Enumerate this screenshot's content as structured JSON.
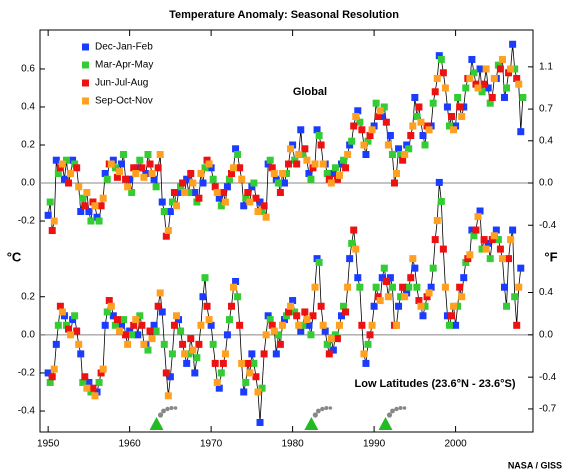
{
  "title": "Temperature Anomaly:  Seasonal Resolution",
  "credit": "NASA / GISS",
  "chart_data": [
    {
      "type": "line",
      "label": "Global",
      "ylabel": "°C",
      "y2label": "°F",
      "xlim": [
        1949,
        2009.5
      ],
      "xticks": [
        1950,
        1960,
        1970,
        1980,
        1990,
        2000
      ],
      "ylim": [
        -1.31,
        0.805
      ],
      "yticks": [
        -0.2,
        {
          "value": 0,
          "label": "0.0"
        },
        0.2,
        0.4,
        0.6
      ],
      "y2lim": [
        -2.358,
        1.449
      ],
      "y2ticks": [
        -0.4,
        {
          "value": 0,
          "label": "0.0"
        },
        0.4,
        0.7,
        1.1
      ],
      "zero_line": true,
      "legend": "upper left",
      "line_color": "#000000",
      "x": [
        1950,
        1951,
        1952,
        1953,
        1954,
        1955,
        1956,
        1957,
        1958,
        1959,
        1960,
        1961,
        1962,
        1963,
        1964,
        1965,
        1966,
        1967,
        1968,
        1969,
        1970,
        1971,
        1972,
        1973,
        1974,
        1975,
        1976,
        1977,
        1978,
        1979,
        1980,
        1981,
        1982,
        1983,
        1984,
        1985,
        1986,
        1987,
        1988,
        1989,
        1990,
        1991,
        1992,
        1993,
        1994,
        1995,
        1996,
        1997,
        1998,
        1999,
        2000,
        2001,
        2002,
        2003,
        2004,
        2005,
        2006,
        2007,
        2008
      ],
      "series": [
        {
          "name": "Dec-Jan-Feb",
          "color": "#1a3cff",
          "values": [
            -0.17,
            0.12,
            0.02,
            0.12,
            -0.15,
            -0.15,
            -0.18,
            0.05,
            0.12,
            0.1,
            0.02,
            0.08,
            0.05,
            0.02,
            -0.1,
            -0.15,
            -0.05,
            0.02,
            -0.05,
            0.0,
            0.08,
            -0.08,
            -0.02,
            0.18,
            -0.12,
            -0.02,
            -0.1,
            0.1,
            0.02,
            0.0,
            0.2,
            0.28,
            0.05,
            0.28,
            0.1,
            0.05,
            0.1,
            0.2,
            0.38,
            0.15,
            0.3,
            0.35,
            0.25,
            0.18,
            0.2,
            0.45,
            0.25,
            0.3,
            0.67,
            0.4,
            0.3,
            0.4,
            0.65,
            0.6,
            0.5,
            0.55,
            0.45,
            0.73,
            0.27
          ]
        },
        {
          "name": "Mar-Apr-May",
          "color": "#33cc33",
          "values": [
            -0.1,
            0.05,
            0.12,
            0.1,
            -0.08,
            -0.2,
            -0.2,
            0.02,
            0.08,
            0.15,
            -0.05,
            0.12,
            0.15,
            -0.02,
            -0.15,
            -0.1,
            -0.02,
            -0.05,
            -0.1,
            0.08,
            0.02,
            -0.12,
            0.02,
            0.15,
            -0.08,
            0.0,
            -0.15,
            0.12,
            0.0,
            0.05,
            0.12,
            0.15,
            0.02,
            0.25,
            0.05,
            0.08,
            0.12,
            0.22,
            0.32,
            0.22,
            0.42,
            0.4,
            0.15,
            0.15,
            0.18,
            0.35,
            0.2,
            0.42,
            0.65,
            0.3,
            0.45,
            0.5,
            0.58,
            0.48,
            0.42,
            0.62,
            0.5,
            0.6,
            0.45
          ]
        },
        {
          "name": "Jun-Jul-Aug",
          "color": "#ee1111",
          "values": [
            -0.25,
            0.08,
            0.0,
            0.08,
            -0.12,
            -0.1,
            -0.12,
            0.1,
            0.03,
            0.02,
            0.08,
            0.08,
            0.1,
            0.08,
            -0.28,
            -0.05,
            0.0,
            0.05,
            -0.08,
            0.12,
            -0.02,
            -0.05,
            0.05,
            0.08,
            -0.05,
            -0.08,
            -0.12,
            0.08,
            -0.05,
            0.1,
            0.1,
            0.18,
            0.08,
            0.2,
            0.02,
            0.02,
            0.08,
            0.3,
            0.28,
            0.25,
            0.35,
            0.32,
            0.0,
            0.12,
            0.25,
            0.4,
            0.3,
            0.48,
            0.58,
            0.35,
            0.4,
            0.55,
            0.52,
            0.52,
            0.45,
            0.6,
            0.58,
            0.55,
            null
          ]
        },
        {
          "name": "Sep-Oct-Nov",
          "color": "#ffa020",
          "values": [
            -0.2,
            0.1,
            0.05,
            -0.02,
            -0.05,
            -0.12,
            -0.08,
            0.1,
            0.06,
            -0.02,
            0.05,
            0.03,
            0.05,
            0.15,
            -0.25,
            -0.12,
            -0.05,
            0.0,
            0.05,
            0.1,
            -0.05,
            -0.1,
            0.08,
            0.02,
            -0.1,
            -0.15,
            -0.18,
            0.05,
            0.05,
            0.18,
            0.15,
            0.12,
            0.1,
            0.1,
            0.0,
            0.04,
            0.15,
            0.35,
            0.2,
            0.28,
            0.38,
            0.2,
            0.05,
            0.15,
            0.3,
            0.32,
            0.28,
            0.55,
            0.5,
            0.28,
            0.35,
            0.55,
            0.5,
            0.6,
            0.55,
            0.65,
            0.6,
            0.52,
            null
          ]
        }
      ]
    },
    {
      "type": "line",
      "label": "Low Latitudes (23.6°N - 23.6°S)",
      "xlim": [
        1949,
        2009.5
      ],
      "ylim": [
        -0.51,
        1.6
      ],
      "yticks": [
        -0.4,
        -0.2,
        {
          "value": 0,
          "label": "0.0"
        },
        0.2
      ],
      "y2lim": [
        -0.918,
        2.88
      ],
      "y2ticks": [
        -0.7,
        -0.4,
        {
          "value": 0,
          "label": "0.0"
        },
        0.4
      ],
      "zero_line": true,
      "line_color": "#000000",
      "markers_x": [
        1963.3,
        1982.3,
        1991.4
      ],
      "marker_color": "#22bb22",
      "x": [
        1950,
        1951,
        1952,
        1953,
        1954,
        1955,
        1956,
        1957,
        1958,
        1959,
        1960,
        1961,
        1962,
        1963,
        1964,
        1965,
        1966,
        1967,
        1968,
        1969,
        1970,
        1971,
        1972,
        1973,
        1974,
        1975,
        1976,
        1977,
        1978,
        1979,
        1980,
        1981,
        1982,
        1983,
        1984,
        1985,
        1986,
        1987,
        1988,
        1989,
        1990,
        1991,
        1992,
        1993,
        1994,
        1995,
        1996,
        1997,
        1998,
        1999,
        2000,
        2001,
        2002,
        2003,
        2004,
        2005,
        2006,
        2007,
        2008
      ],
      "series": [
        {
          "name": "Dec-Jan-Feb",
          "color": "#1a3cff",
          "values": [
            -0.2,
            -0.05,
            0.1,
            0.08,
            -0.1,
            -0.25,
            -0.3,
            0.05,
            0.1,
            0.05,
            0.02,
            0.0,
            -0.05,
            0.05,
            0.12,
            -0.22,
            0.08,
            -0.15,
            -0.2,
            0.2,
            0.05,
            -0.28,
            0.0,
            0.28,
            -0.3,
            -0.1,
            -0.46,
            0.1,
            -0.1,
            0.08,
            0.18,
            0.02,
            0.05,
            0.4,
            0.02,
            -0.08,
            0.1,
            0.4,
            0.3,
            -0.15,
            0.15,
            0.3,
            0.3,
            0.15,
            0.22,
            0.35,
            0.1,
            0.25,
            0.8,
            0.1,
            0.05,
            0.3,
            0.55,
            0.65,
            0.48,
            0.55,
            0.25,
            0.55,
            0.35
          ]
        },
        {
          "name": "Mar-Apr-May",
          "color": "#33cc33",
          "values": [
            -0.25,
            0.05,
            0.05,
            0.1,
            -0.25,
            -0.3,
            -0.25,
            0.12,
            0.05,
            0.08,
            0.0,
            0.1,
            -0.08,
            0.02,
            -0.05,
            -0.1,
            0.02,
            -0.1,
            -0.12,
            0.3,
            -0.05,
            -0.2,
            0.08,
            0.2,
            -0.25,
            -0.15,
            -0.28,
            0.08,
            0.0,
            0.1,
            0.12,
            0.05,
            0.0,
            0.38,
            -0.05,
            0.0,
            0.15,
            0.48,
            0.25,
            -0.05,
            0.25,
            0.35,
            0.25,
            0.2,
            0.25,
            0.25,
            0.15,
            0.35,
            0.7,
            0.05,
            0.15,
            0.38,
            0.52,
            0.45,
            0.4,
            0.5,
            0.15,
            0.2,
            null
          ]
        },
        {
          "name": "Jun-Jul-Aug",
          "color": "#ee1111",
          "values": [
            -0.22,
            0.15,
            0.03,
            0.02,
            -0.22,
            -0.28,
            -0.2,
            0.18,
            0.08,
            0.0,
            0.05,
            0.05,
            0.02,
            0.15,
            -0.2,
            0.05,
            -0.05,
            -0.02,
            -0.05,
            0.15,
            -0.15,
            -0.15,
            0.15,
            0.05,
            -0.15,
            -0.22,
            -0.1,
            0.05,
            -0.05,
            0.12,
            0.1,
            0.12,
            0.1,
            0.15,
            -0.1,
            -0.02,
            0.12,
            0.55,
            0.05,
            0.0,
            0.2,
            0.28,
            0.05,
            0.25,
            0.3,
            0.18,
            0.2,
            0.5,
            0.45,
            0.1,
            0.25,
            0.4,
            0.55,
            0.5,
            0.5,
            0.45,
            0.4,
            0.05,
            null
          ]
        },
        {
          "name": "Sep-Oct-Nov",
          "color": "#ffa020",
          "values": [
            -0.18,
            0.12,
            0.0,
            -0.05,
            -0.28,
            -0.32,
            -0.18,
            0.15,
            0.02,
            -0.05,
            0.08,
            -0.05,
            -0.02,
            0.22,
            -0.32,
            0.1,
            -0.1,
            -0.08,
            0.05,
            0.08,
            -0.25,
            -0.1,
            0.25,
            -0.15,
            -0.2,
            -0.3,
            0.0,
            0.02,
            0.05,
            0.15,
            0.05,
            0.08,
            0.25,
            0.05,
            -0.02,
            0.05,
            0.25,
            0.45,
            -0.1,
            0.05,
            0.18,
            0.2,
            0.05,
            0.2,
            0.4,
            0.15,
            0.22,
            0.6,
            0.25,
            0.15,
            0.2,
            0.42,
            0.62,
            0.45,
            0.52,
            0.4,
            0.5,
            0.25,
            null
          ]
        }
      ]
    }
  ]
}
